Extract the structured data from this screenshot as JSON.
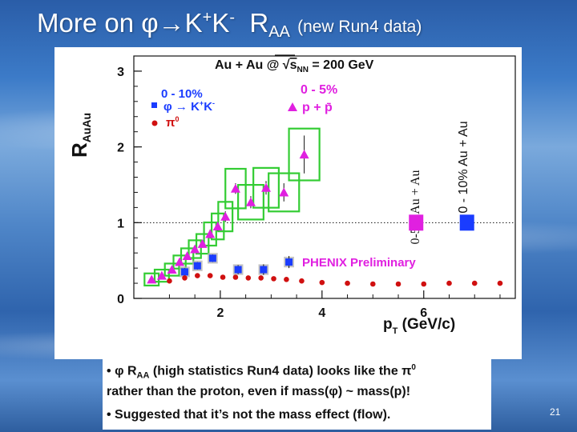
{
  "slide": {
    "title_main": "More on ",
    "title_phi": "φ",
    "title_arrow": "→",
    "title_k1": "K",
    "title_kplus": "+",
    "title_k2": "K",
    "title_kminus": "-",
    "title_raa": "R",
    "title_raa_sub": "AA",
    "title_paren": "(new Run4 data)",
    "page_number": "21"
  },
  "caption": {
    "line1_bullet": "•",
    "line1_phi": "φ",
    "line1_r": "R",
    "line1_sub": "AA",
    "line1_text": "(high statistics Run4 data) looks like the",
    "line1_pi": "π",
    "line1_pisup": "0",
    "line1_text2": "rather than the proton, even if mass(",
    "line1_phi2": "φ",
    "line1_text3": ") ~ mass(p)!",
    "line2": "• Suggested that it’s not the mass effect (flow)."
  },
  "chart_data": {
    "type": "scatter",
    "title_left": "Au + Au @",
    "title_sqrt": "√",
    "title_s": "s",
    "title_s_sub": "NN",
    "title_right": "= 200 GeV",
    "ylabel": "R",
    "ylabel_sub": "AuAu",
    "xlabel_p": "p",
    "xlabel_sub": "T",
    "xlabel_units": "(GeV/c)",
    "xlim": [
      0.3,
      7.8
    ],
    "ylim": [
      0,
      3.2
    ],
    "x_ticks": [
      "2",
      "4",
      "6"
    ],
    "y_ticks": [
      "0",
      "1",
      "2",
      "3"
    ],
    "reference_line": 1,
    "legend_left": {
      "header": "0 - 10%",
      "entry1_phi": "φ",
      "entry1_arrow": "→",
      "entry1_k": "K",
      "entry1_kp": "+",
      "entry1_k2": "K",
      "entry1_km": "-",
      "entry2_pi": "π",
      "entry2_sup": "0"
    },
    "legend_right": {
      "header": "0 - 5%",
      "entry": "p + p̄"
    },
    "annotation": "PHENIX Preliminary",
    "norm_label_1": "0-5% Au + Au",
    "norm_label_2": "0 - 10% Au + Au",
    "colors": {
      "phi": "#1a3cff",
      "pi0": "#d01010",
      "proton": "#e020e0",
      "proton_band": "#33cc33",
      "phi_band": "#b0b0b0"
    },
    "series": [
      {
        "name": "φ→K+K-",
        "x": [
          1.3,
          1.55,
          1.85,
          2.35,
          2.85,
          3.35
        ],
        "y": [
          0.35,
          0.43,
          0.53,
          0.38,
          0.38,
          0.48
        ],
        "err": [
          0.05,
          0.05,
          0.05,
          0.06,
          0.07,
          0.08
        ]
      },
      {
        "name": "π0",
        "x": [
          1.0,
          1.3,
          1.55,
          1.8,
          2.05,
          2.3,
          2.55,
          2.8,
          3.05,
          3.3,
          3.6,
          4.0,
          4.5,
          5.0,
          5.5,
          6.0,
          6.5,
          7.0,
          7.5
        ],
        "y": [
          0.23,
          0.27,
          0.3,
          0.3,
          0.28,
          0.28,
          0.27,
          0.27,
          0.26,
          0.25,
          0.23,
          0.21,
          0.2,
          0.19,
          0.19,
          0.19,
          0.2,
          0.2,
          0.2
        ]
      },
      {
        "name": "p + p̄",
        "x": [
          0.65,
          0.85,
          1.05,
          1.2,
          1.35,
          1.5,
          1.65,
          1.8,
          1.95,
          2.1,
          2.3,
          2.6,
          2.9,
          3.25,
          3.65
        ],
        "y": [
          0.25,
          0.3,
          0.38,
          0.48,
          0.56,
          0.65,
          0.72,
          0.85,
          0.95,
          1.08,
          1.45,
          1.27,
          1.46,
          1.4,
          1.9
        ],
        "err": [
          0.03,
          0.03,
          0.04,
          0.04,
          0.05,
          0.05,
          0.05,
          0.06,
          0.06,
          0.07,
          0.07,
          0.08,
          0.09,
          0.12,
          0.25
        ]
      }
    ],
    "norm_boxes": [
      {
        "x": 5.85,
        "y": 1.0,
        "color": "#e020e0"
      },
      {
        "x": 6.85,
        "y": 1.0,
        "color": "#1a3cff"
      }
    ]
  }
}
